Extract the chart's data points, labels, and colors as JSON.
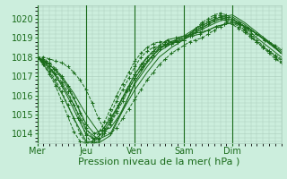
{
  "title": "",
  "xlabel": "Pression niveau de la mer( hPa )",
  "background_color": "#cceedd",
  "plot_background_color": "#cceedd",
  "line_color": "#1a6b1a",
  "grid_color": "#aaccbb",
  "text_color": "#1a6b1a",
  "ylim": [
    1013.5,
    1020.7
  ],
  "yticks": [
    1014,
    1015,
    1016,
    1017,
    1018,
    1019,
    1020
  ],
  "day_labels": [
    "Mer",
    "Jeu",
    "Ven",
    "Sam",
    "Dim"
  ],
  "day_positions": [
    0,
    48,
    96,
    144,
    192
  ],
  "total_hours": 240,
  "xlabel_fontsize": 8,
  "ytick_fontsize": 7,
  "xtick_fontsize": 7,
  "series": [
    {
      "x": [
        0,
        6,
        12,
        18,
        24,
        30,
        36,
        42,
        48,
        54,
        60,
        66,
        72,
        78,
        84,
        90,
        96,
        102,
        108,
        114,
        120,
        126,
        132,
        138,
        144,
        150,
        156,
        162,
        168,
        174,
        180,
        186,
        192,
        198,
        204,
        210,
        216,
        222,
        228,
        234,
        240
      ],
      "y": [
        1018.0,
        1018.0,
        1017.9,
        1017.8,
        1017.7,
        1017.5,
        1017.2,
        1016.8,
        1016.3,
        1015.6,
        1014.8,
        1014.2,
        1014.0,
        1014.3,
        1014.8,
        1015.3,
        1015.8,
        1016.3,
        1016.8,
        1017.2,
        1017.6,
        1017.9,
        1018.2,
        1018.4,
        1018.6,
        1018.8,
        1018.9,
        1019.0,
        1019.2,
        1019.4,
        1019.6,
        1019.8,
        1019.9,
        1019.8,
        1019.6,
        1019.4,
        1019.2,
        1019.0,
        1018.8,
        1018.6,
        1018.4
      ],
      "style": "dashed",
      "marker": "+"
    },
    {
      "x": [
        0,
        6,
        12,
        18,
        24,
        30,
        36,
        42,
        48,
        54,
        60,
        66,
        72,
        78,
        84,
        90,
        96,
        102,
        108,
        114,
        120,
        126,
        132,
        138,
        144,
        150,
        156,
        162,
        168,
        174,
        180,
        186,
        192,
        198,
        204,
        210,
        216,
        222,
        228,
        234,
        240
      ],
      "y": [
        1018.0,
        1017.9,
        1017.7,
        1017.4,
        1017.0,
        1016.5,
        1015.9,
        1015.1,
        1014.3,
        1013.8,
        1013.7,
        1014.0,
        1014.5,
        1015.1,
        1015.7,
        1016.3,
        1016.9,
        1017.4,
        1017.8,
        1018.1,
        1018.4,
        1018.6,
        1018.7,
        1018.8,
        1018.9,
        1019.1,
        1019.3,
        1019.5,
        1019.7,
        1019.9,
        1020.0,
        1019.9,
        1019.7,
        1019.5,
        1019.3,
        1019.0,
        1018.8,
        1018.5,
        1018.3,
        1018.1,
        1017.9
      ],
      "style": "dashed",
      "marker": "+"
    },
    {
      "x": [
        0,
        6,
        12,
        18,
        24,
        30,
        36,
        42,
        48,
        54,
        60,
        66,
        72,
        78,
        84,
        90,
        96,
        102,
        108,
        114,
        120,
        126,
        132,
        138,
        144,
        150,
        156,
        162,
        168,
        174,
        180,
        186,
        192,
        198,
        204,
        210,
        216,
        222,
        228,
        234,
        240
      ],
      "y": [
        1018.0,
        1017.8,
        1017.5,
        1017.1,
        1016.7,
        1016.2,
        1015.5,
        1014.7,
        1013.9,
        1013.5,
        1013.6,
        1014.0,
        1014.6,
        1015.2,
        1015.9,
        1016.5,
        1017.1,
        1017.6,
        1018.0,
        1018.3,
        1018.5,
        1018.6,
        1018.7,
        1018.8,
        1018.9,
        1019.1,
        1019.4,
        1019.6,
        1019.8,
        1020.0,
        1020.1,
        1020.0,
        1019.8,
        1019.6,
        1019.4,
        1019.1,
        1018.8,
        1018.5,
        1018.3,
        1018.1,
        1017.8
      ],
      "style": "dashed",
      "marker": "+"
    },
    {
      "x": [
        0,
        6,
        12,
        18,
        24,
        30,
        36,
        42,
        48,
        54,
        60,
        66,
        72,
        78,
        84,
        90,
        96,
        102,
        108,
        114,
        120,
        126,
        132,
        138,
        144,
        150,
        156,
        162,
        168,
        174,
        180,
        186,
        192,
        198,
        204,
        210,
        216,
        222,
        228,
        234,
        240
      ],
      "y": [
        1018.0,
        1017.7,
        1017.3,
        1016.8,
        1016.2,
        1015.5,
        1014.8,
        1014.0,
        1013.5,
        1013.5,
        1013.8,
        1014.3,
        1015.0,
        1015.7,
        1016.3,
        1016.9,
        1017.5,
        1018.0,
        1018.3,
        1018.5,
        1018.6,
        1018.7,
        1018.7,
        1018.8,
        1018.9,
        1019.2,
        1019.5,
        1019.7,
        1019.9,
        1020.1,
        1020.2,
        1020.1,
        1019.9,
        1019.7,
        1019.4,
        1019.1,
        1018.8,
        1018.5,
        1018.2,
        1017.9,
        1017.7
      ],
      "style": "dashed",
      "marker": "+"
    },
    {
      "x": [
        0,
        6,
        12,
        18,
        24,
        30,
        36,
        42,
        48,
        54,
        60,
        66,
        72,
        78,
        84,
        90,
        96,
        102,
        108,
        114,
        120,
        126,
        132,
        138,
        144,
        150,
        156,
        162,
        168,
        174,
        180,
        186,
        192,
        198,
        204,
        210,
        216,
        222,
        228,
        234,
        240
      ],
      "y": [
        1018.0,
        1017.6,
        1017.1,
        1016.5,
        1015.7,
        1014.9,
        1014.1,
        1013.6,
        1013.5,
        1013.6,
        1014.0,
        1014.6,
        1015.3,
        1016.0,
        1016.6,
        1017.2,
        1017.8,
        1018.2,
        1018.5,
        1018.7,
        1018.8,
        1018.8,
        1018.8,
        1018.8,
        1018.9,
        1019.2,
        1019.5,
        1019.8,
        1020.0,
        1020.2,
        1020.3,
        1020.2,
        1020.0,
        1019.8,
        1019.5,
        1019.2,
        1018.9,
        1018.6,
        1018.3,
        1018.0,
        1017.7
      ],
      "style": "dashed",
      "marker": "+"
    },
    {
      "x": [
        0,
        8,
        16,
        24,
        32,
        40,
        48,
        56,
        64,
        72,
        80,
        88,
        96,
        104,
        112,
        120,
        128,
        136,
        144,
        152,
        160,
        168,
        176,
        184,
        192,
        200,
        208,
        216,
        224,
        232,
        240
      ],
      "y": [
        1018.0,
        1017.8,
        1017.4,
        1016.9,
        1016.2,
        1015.4,
        1014.5,
        1014.0,
        1014.2,
        1014.8,
        1015.5,
        1016.2,
        1016.9,
        1017.5,
        1018.0,
        1018.4,
        1018.7,
        1018.9,
        1019.0,
        1019.1,
        1019.2,
        1019.4,
        1019.6,
        1019.7,
        1019.8,
        1019.7,
        1019.5,
        1019.2,
        1018.9,
        1018.6,
        1018.2
      ],
      "style": "solid",
      "marker": "+"
    },
    {
      "x": [
        0,
        8,
        16,
        24,
        32,
        40,
        48,
        56,
        64,
        72,
        80,
        88,
        96,
        104,
        112,
        120,
        128,
        136,
        144,
        152,
        160,
        168,
        176,
        184,
        192,
        200,
        208,
        216,
        224,
        232,
        240
      ],
      "y": [
        1018.0,
        1017.7,
        1017.2,
        1016.5,
        1015.7,
        1014.8,
        1014.0,
        1013.7,
        1014.0,
        1014.7,
        1015.5,
        1016.3,
        1017.1,
        1017.7,
        1018.2,
        1018.6,
        1018.9,
        1019.0,
        1019.1,
        1019.2,
        1019.3,
        1019.4,
        1019.6,
        1019.7,
        1019.8,
        1019.7,
        1019.5,
        1019.2,
        1018.9,
        1018.6,
        1018.2
      ],
      "style": "solid",
      "marker": "+"
    },
    {
      "x": [
        0,
        12,
        24,
        36,
        48,
        60,
        72,
        84,
        96,
        108,
        120,
        132,
        144,
        156,
        168,
        180,
        192,
        204,
        216,
        228,
        240
      ],
      "y": [
        1018.0,
        1017.6,
        1017.0,
        1016.1,
        1015.0,
        1014.1,
        1014.3,
        1015.2,
        1016.3,
        1017.2,
        1018.0,
        1018.5,
        1018.9,
        1019.3,
        1019.6,
        1019.9,
        1020.0,
        1019.6,
        1019.0,
        1018.5,
        1018.0
      ],
      "style": "solid",
      "marker": ""
    },
    {
      "x": [
        0,
        12,
        24,
        36,
        48,
        60,
        72,
        84,
        96,
        108,
        120,
        132,
        144,
        156,
        168,
        180,
        192,
        204,
        216,
        228,
        240
      ],
      "y": [
        1018.0,
        1017.4,
        1016.6,
        1015.5,
        1014.2,
        1013.7,
        1014.0,
        1015.3,
        1016.6,
        1017.5,
        1018.3,
        1018.7,
        1019.0,
        1019.4,
        1019.7,
        1020.0,
        1020.1,
        1019.7,
        1019.2,
        1018.7,
        1018.2
      ],
      "style": "solid",
      "marker": ""
    },
    {
      "x": [
        0,
        12,
        24,
        36,
        48,
        60,
        72,
        84,
        96,
        108,
        120,
        132,
        144,
        156,
        168,
        180,
        192,
        204,
        216,
        228,
        240
      ],
      "y": [
        1018.0,
        1017.2,
        1016.1,
        1014.8,
        1013.6,
        1013.5,
        1013.9,
        1015.2,
        1016.7,
        1017.7,
        1018.5,
        1018.8,
        1019.1,
        1019.5,
        1019.8,
        1020.1,
        1020.2,
        1019.8,
        1019.3,
        1018.8,
        1018.3
      ],
      "style": "solid",
      "marker": ""
    }
  ]
}
